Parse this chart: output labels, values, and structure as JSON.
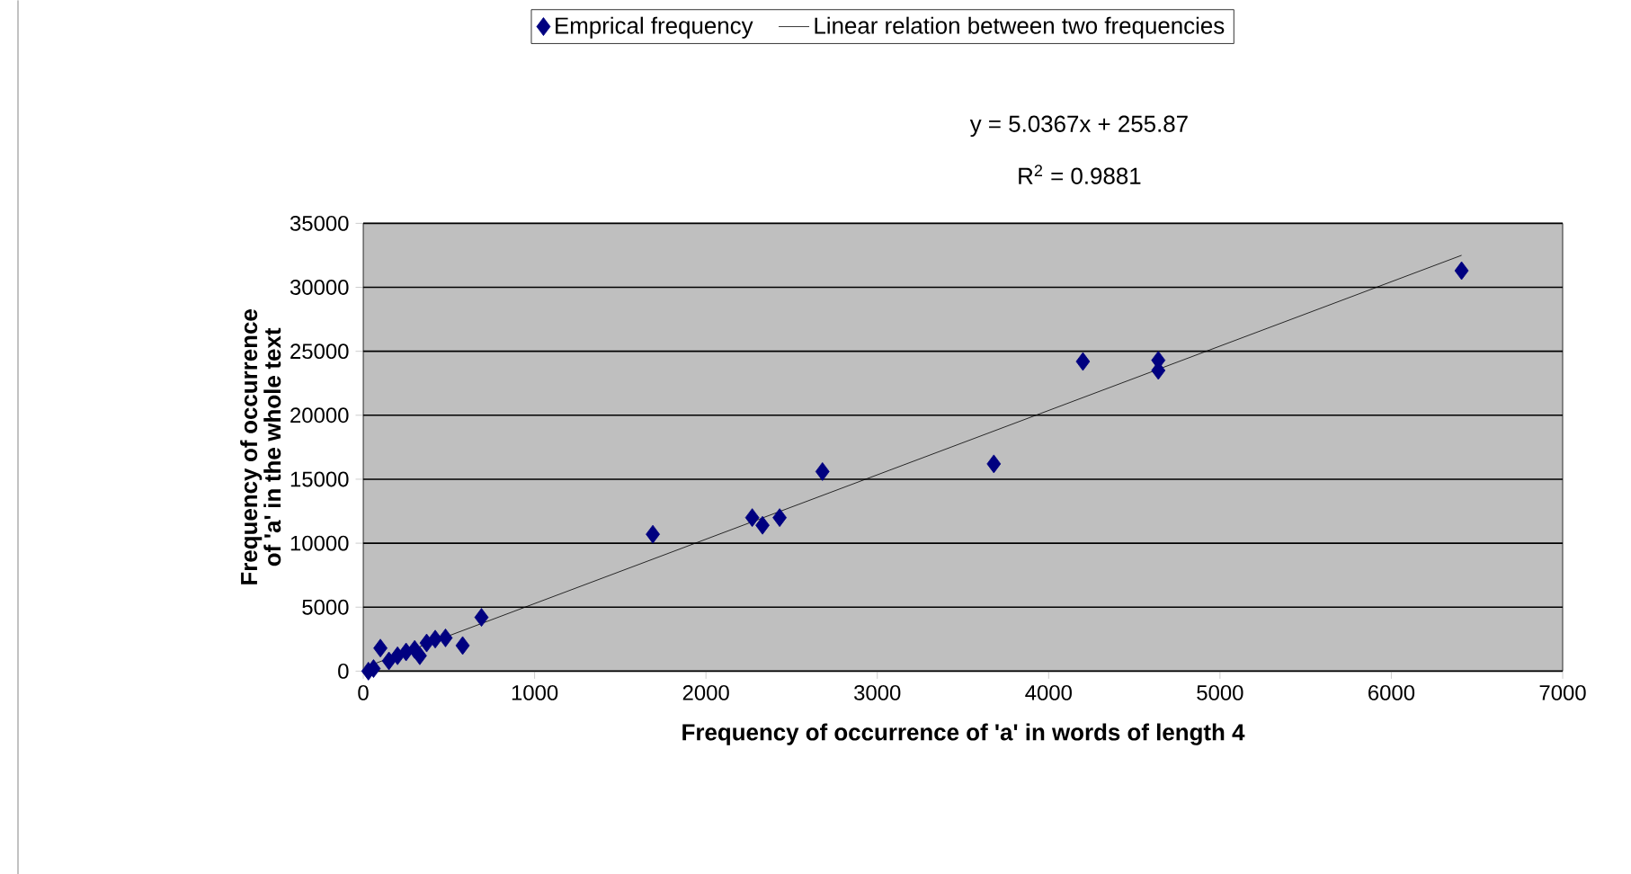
{
  "chart_data": {
    "type": "scatter",
    "xlabel": "Frequency of occurrence of 'a' in words of length 4",
    "ylabel": "Frequency of occurrence of 'a' in the whole text",
    "annotations": [
      "y  =  5.0367x  + 255.87",
      "R$^{2}$ = 0.9881"
    ],
    "series": [
      {
        "name": "Emprical frequency",
        "color": "#000080",
        "marker": "diamond",
        "x": [
          30,
          60,
          100,
          150,
          200,
          250,
          300,
          330,
          370,
          420,
          480,
          580,
          690,
          1690,
          2270,
          2330,
          2430,
          2680,
          3680,
          4200,
          4640,
          4640,
          6410
        ],
        "values": [
          0,
          200,
          1800,
          800,
          1200,
          1500,
          1700,
          1200,
          2200,
          2500,
          2600,
          2000,
          4200,
          10700,
          12000,
          11400,
          12000,
          15600,
          16200,
          24200,
          24300,
          23500,
          31300
        ]
      },
      {
        "name": "Linear relation between two frequencies",
        "type": "line",
        "color": "#000000",
        "marker": "none",
        "line_style": "solid",
        "x": [
          30,
          6410
        ],
        "values": [
          400,
          32500
        ]
      }
    ],
    "xlim": [
      0,
      7000
    ],
    "xticks": [
      0,
      1000,
      2000,
      3000,
      4000,
      5000,
      6000,
      7000
    ],
    "ylim": [
      0,
      35000
    ],
    "yticks": [
      0,
      5000,
      10000,
      15000,
      20000,
      25000,
      30000,
      35000
    ],
    "grid": "y",
    "legend": "top"
  }
}
